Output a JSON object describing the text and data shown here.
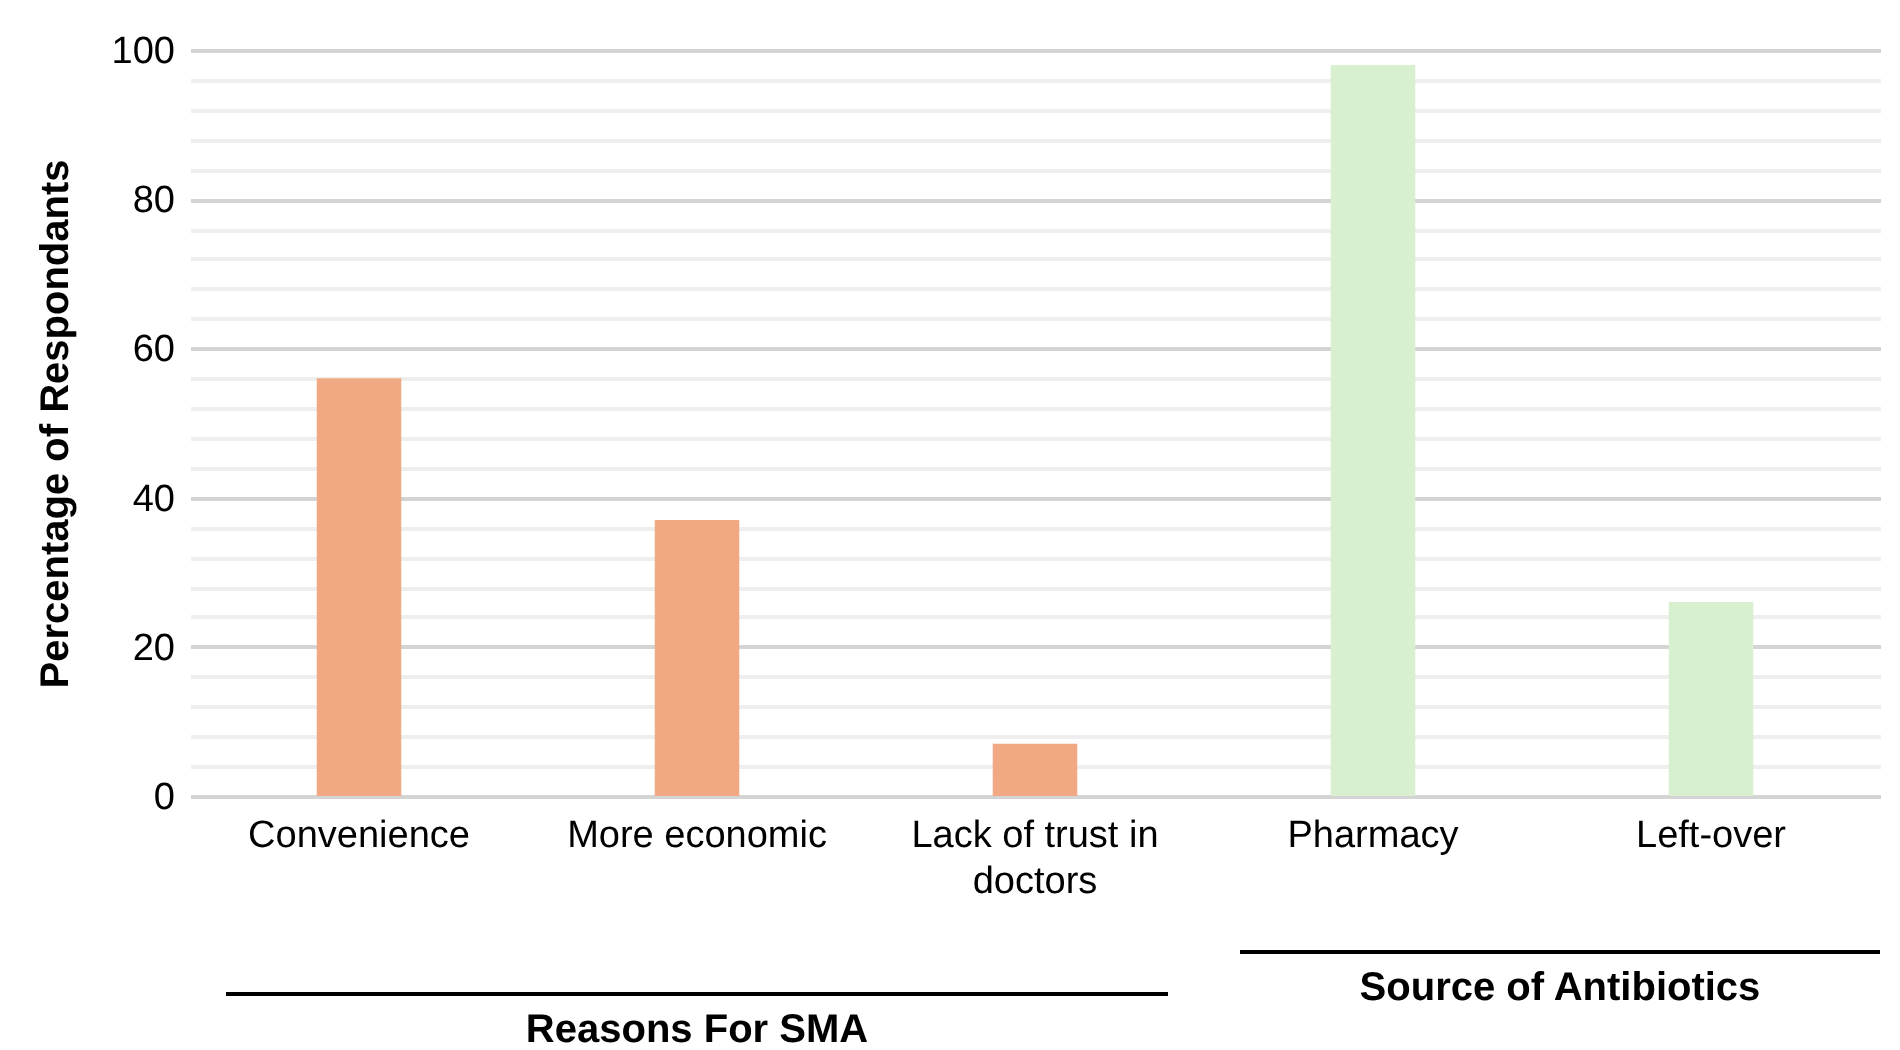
{
  "chart_data": {
    "type": "bar",
    "ylabel": "Percentage of Respondants",
    "categories": [
      "Convenience",
      "More economic",
      "Lack of trust in doctors",
      "Pharmacy",
      "Left-over"
    ],
    "values": [
      56,
      37,
      7,
      98,
      26
    ],
    "colors": [
      "#f0a983",
      "#f0a983",
      "#f0a983",
      "#d8f0d0",
      "#d8f0d0"
    ],
    "ylim": [
      0,
      100
    ],
    "yticks": [
      0,
      {
        "value": 4,
        "label": null
      },
      {
        "value": 8,
        "label": null
      },
      {
        "value": 12,
        "label": null
      },
      {
        "value": 16,
        "label": null
      },
      20,
      {
        "value": 24,
        "label": null
      },
      {
        "value": 28,
        "label": null
      },
      {
        "value": 32,
        "label": null
      },
      {
        "value": 36,
        "label": null
      },
      40,
      {
        "value": 44,
        "label": null
      },
      {
        "value": 48,
        "label": null
      },
      {
        "value": 52,
        "label": null
      },
      {
        "value": 56,
        "label": null
      },
      60,
      {
        "value": 64,
        "label": null
      },
      {
        "value": 68,
        "label": null
      },
      {
        "value": 72,
        "label": null
      },
      {
        "value": 76,
        "label": null
      },
      80,
      {
        "value": 84,
        "label": null
      },
      {
        "value": 88,
        "label": null
      },
      {
        "value": 92,
        "label": null
      },
      {
        "value": 96,
        "label": null
      },
      100
    ],
    "grid": true,
    "annotations": [
      "Reasons For SMA",
      "Source of Antibiotics"
    ]
  }
}
